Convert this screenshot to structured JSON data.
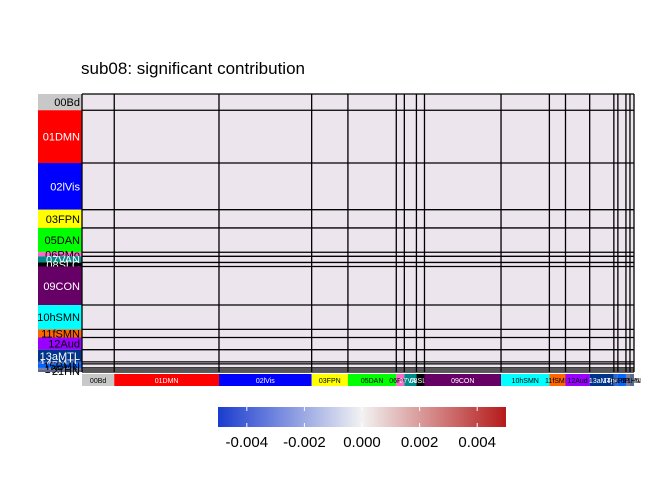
{
  "chart_data": {
    "type": "heatmap",
    "title": "sub08: significant contribution",
    "xlabel": "",
    "ylabel": "",
    "networks": [
      {
        "name": "00Bd",
        "color": "#c8c8c8",
        "text": "#000000",
        "size": 8
      },
      {
        "name": "01DMN",
        "color": "#ff0000",
        "text": "#ffffff",
        "size": 26
      },
      {
        "name": "02lVis",
        "color": "#0000ff",
        "text": "#ffffff",
        "size": 23
      },
      {
        "name": "03FPN",
        "color": "#ffff00",
        "text": "#000000",
        "size": 9
      },
      {
        "name": "05DAN",
        "color": "#00ff00",
        "text": "#000000",
        "size": 12
      },
      {
        "name": "06PMo",
        "color": "#ff66cc",
        "text": "#000000",
        "size": 2
      },
      {
        "name": "07VAN",
        "color": "#008b8b",
        "text": "#ffffff",
        "size": 3
      },
      {
        "name": "08SLC",
        "color": "#000000",
        "text": "#ffffff",
        "size": 2
      },
      {
        "name": "09CON",
        "color": "#660066",
        "text": "#ffffff",
        "size": 19
      },
      {
        "name": "10hSMN",
        "color": "#00ffff",
        "text": "#000000",
        "size": 12
      },
      {
        "name": "11fSMN",
        "color": "#ff6600",
        "text": "#000000",
        "size": 4
      },
      {
        "name": "12Aud",
        "color": "#9900ff",
        "text": "#000000",
        "size": 6
      },
      {
        "name": "13aMTL",
        "color": "#00338a",
        "text": "#ffffff",
        "size": 6
      },
      {
        "name": "14pMTL",
        "color": "#3366cc",
        "text": "#ffffff",
        "size": 1
      },
      {
        "name": "15PMN",
        "color": "#0066ff",
        "text": "#000000",
        "size": 2
      },
      {
        "name": "16PRN",
        "color": "#7a7aa3",
        "text": "#000000",
        "size": 1
      },
      {
        "name": "21HN",
        "color": "#5a6a8a",
        "text": "#000000",
        "size": 1
      }
    ],
    "colorbar": {
      "range": [
        -0.005,
        0.005
      ],
      "ticks": [
        "-0.004",
        "-0.002",
        "0.000",
        "0.002",
        "0.004"
      ],
      "tick_values": [
        -0.004,
        -0.002,
        0.0,
        0.002,
        0.004
      ],
      "low_color": "#1a3ccf",
      "mid_color": "#f2f2f2",
      "high_color": "#b51a1a"
    },
    "cell_fill": "#ede5ee",
    "legend": "bottom"
  }
}
